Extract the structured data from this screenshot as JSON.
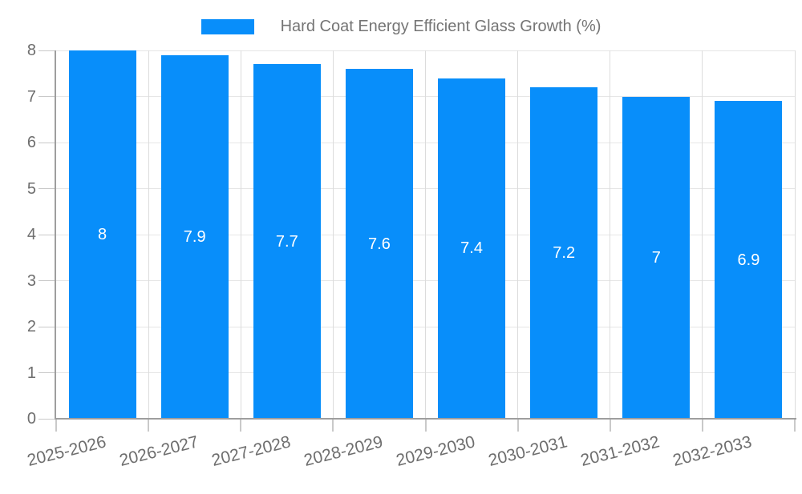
{
  "legend": {
    "label": "Hard Coat Energy Efficient Glass Growth (%)"
  },
  "chart_data": {
    "type": "bar",
    "title": "Hard Coat Energy Efficient Glass Growth (%)",
    "categories": [
      "2025-2026",
      "2026-2027",
      "2027-2028",
      "2028-2029",
      "2029-2030",
      "2030-2031",
      "2031-2032",
      "2032-2033"
    ],
    "values": [
      8,
      7.9,
      7.7,
      7.6,
      7.4,
      7.2,
      7,
      6.9
    ],
    "series": [
      {
        "name": "Hard Coat Energy Efficient Glass Growth (%)",
        "values": [
          8,
          7.9,
          7.7,
          7.6,
          7.4,
          7.2,
          7,
          6.9
        ]
      }
    ],
    "xlabel": "",
    "ylabel": "",
    "ylim": [
      0,
      8
    ],
    "yticks": [
      0,
      1,
      2,
      3,
      4,
      5,
      6,
      7,
      8
    ],
    "grid": true,
    "bar_value_labels_shown": true,
    "legend_position": "top-center"
  },
  "colors": {
    "bar": "#088EFA",
    "bar_label": "#FFFFFF",
    "axis_line": "#9E9E9E",
    "gridline": "#E6E6E6",
    "gridline_vertical": "#DCDCDC",
    "tick": "#C9C9C9",
    "axis_label": "#6E6E6E",
    "legend_text": "#757575",
    "background": "#FFFFFF"
  }
}
